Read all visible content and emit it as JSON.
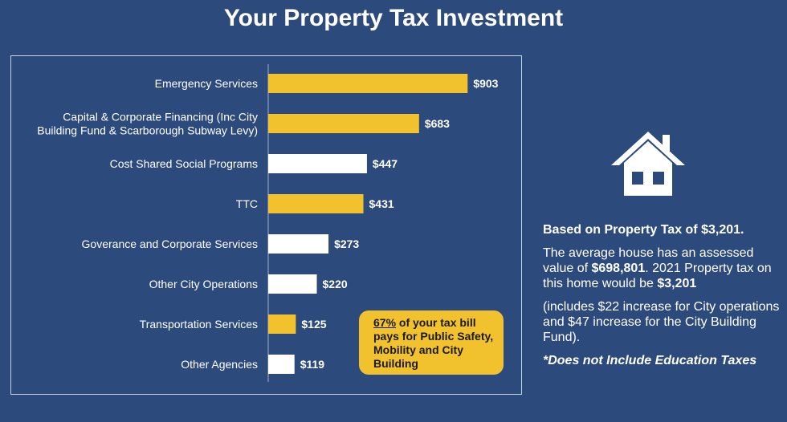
{
  "title": "Your Property Tax Investment",
  "chart_data": {
    "type": "bar",
    "orientation": "horizontal",
    "categories": [
      [
        "Emergency Services"
      ],
      [
        "Capital & Corporate Financing (Inc City",
        "Building Fund & Scarborough Subway Levy)"
      ],
      [
        "Cost Shared Social Programs"
      ],
      [
        "TTC"
      ],
      [
        "Goverance and Corporate Services"
      ],
      [
        "Other City Operations"
      ],
      [
        "Transportation Services"
      ],
      [
        "Other Agencies"
      ]
    ],
    "values": [
      903,
      683,
      447,
      431,
      273,
      220,
      125,
      119
    ],
    "value_labels": [
      "$903",
      "$683",
      "$447",
      "$431",
      "$273",
      "$220",
      "$125",
      "$119"
    ],
    "highlighted": [
      true,
      true,
      false,
      true,
      false,
      false,
      true,
      false
    ],
    "xlim": [
      0,
      1000
    ],
    "colors": {
      "highlight": "#f2c12e",
      "normal": "#ffffff",
      "label": "#ffffff"
    }
  },
  "callout": {
    "percent": "67%",
    "text": " of your tax bill pays for Public Safety, Mobility and City Building"
  },
  "info": {
    "basis": "Based on Property Tax of $3,201.",
    "avg_pre": "The average house has an assessed value of ",
    "avg_value": "$698,801",
    "avg_mid": ". 2021 Property tax on this home would be ",
    "avg_tax": "$3,201",
    "includes": "(includes $22 increase for City operations and $47 increase for the City Building Fund).",
    "note": "*Does not Include Education Taxes"
  },
  "icons": {
    "house": "house-icon"
  }
}
